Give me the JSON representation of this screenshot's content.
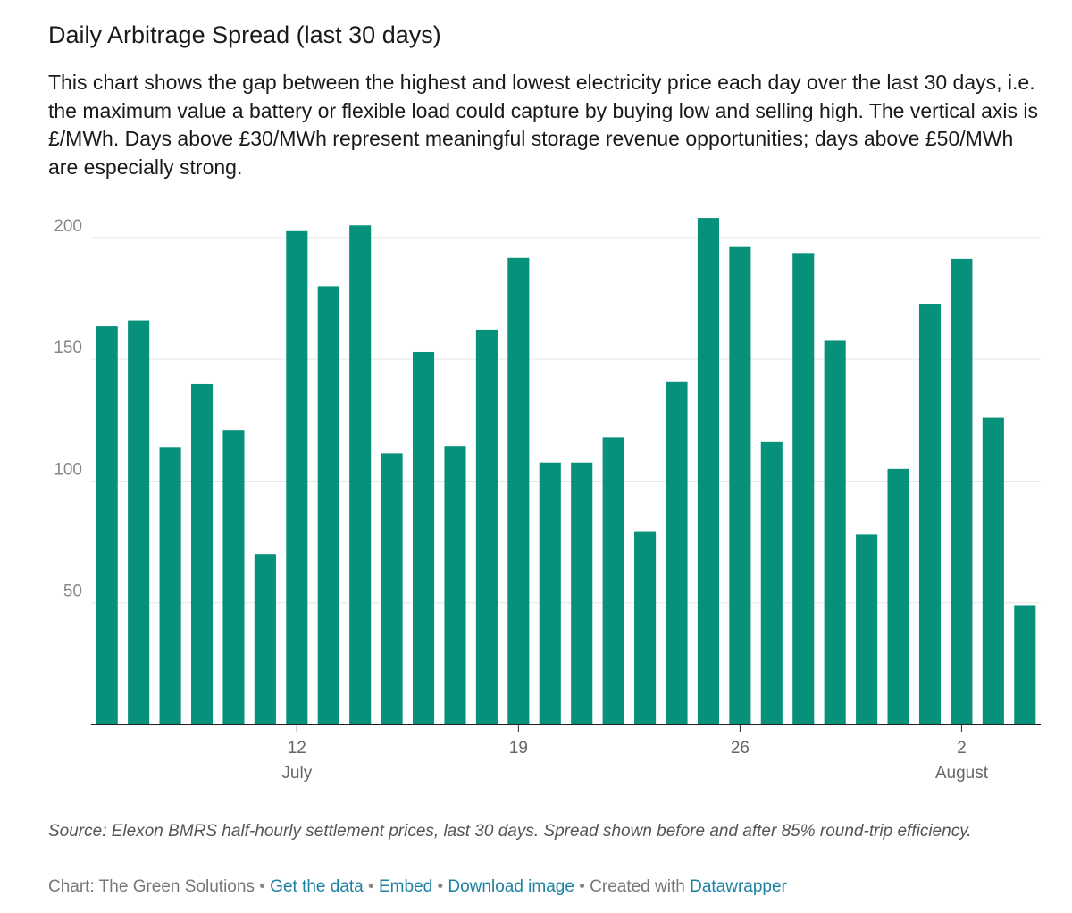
{
  "header": {
    "title": "Daily Arbitrage Spread (last 30 days)",
    "description": "This chart shows the gap between the highest and lowest electricity price each day over the last 30 days, i.e. the maximum value a battery or flexible load could capture by buying low and selling high. The vertical axis is £/MWh. Days above £30/MWh represent meaningful storage revenue opportunities; days above £50/MWh are especially strong."
  },
  "chart_data": {
    "type": "bar",
    "title": "Daily Arbitrage Spread (last 30 days)",
    "xlabel": "",
    "ylabel": "",
    "x": [
      "2025-07-06",
      "2025-07-07",
      "2025-07-08",
      "2025-07-09",
      "2025-07-10",
      "2025-07-11",
      "2025-07-12",
      "2025-07-13",
      "2025-07-14",
      "2025-07-15",
      "2025-07-16",
      "2025-07-17",
      "2025-07-18",
      "2025-07-19",
      "2025-07-20",
      "2025-07-21",
      "2025-07-22",
      "2025-07-23",
      "2025-07-24",
      "2025-07-25",
      "2025-07-26",
      "2025-07-27",
      "2025-07-28",
      "2025-07-29",
      "2025-07-30",
      "2025-07-31",
      "2025-08-01",
      "2025-08-02",
      "2025-08-03",
      "2025-08-04"
    ],
    "values": [
      163.6,
      166.0,
      114.0,
      139.8,
      121.0,
      70.0,
      202.6,
      180.0,
      205.0,
      111.4,
      153.0,
      114.4,
      162.2,
      191.6,
      107.6,
      107.6,
      118.0,
      79.4,
      140.6,
      208.0,
      196.4,
      116.0,
      193.6,
      157.6,
      78.0,
      105.0,
      172.8,
      191.2,
      126.0,
      49.0
    ],
    "ylim": [
      0,
      215
    ],
    "yticks": [
      50,
      100,
      150,
      200
    ],
    "xticks": [
      {
        "date": "2025-07-12",
        "label": "12",
        "month": "July"
      },
      {
        "date": "2025-07-19",
        "label": "19",
        "month": ""
      },
      {
        "date": "2025-07-26",
        "label": "26",
        "month": ""
      },
      {
        "date": "2025-08-02",
        "label": "2",
        "month": "August"
      }
    ],
    "bar_color": "#07907a",
    "grid": true
  },
  "source": {
    "text": "Source: Elexon BMRS half-hourly settlement prices, last 30 days. Spread shown before and after 85% round-trip efficiency."
  },
  "footer": {
    "credit": "Chart: The Green Solutions",
    "get_data": "Get the data",
    "embed": "Embed",
    "download": "Download image",
    "created_with": "Created with",
    "datawrapper": "Datawrapper",
    "sep": "•"
  },
  "colors": {
    "bar": "#07907a",
    "link": "#1d81a2",
    "grid": "#e6e6e6",
    "tick_text": "#888888"
  }
}
